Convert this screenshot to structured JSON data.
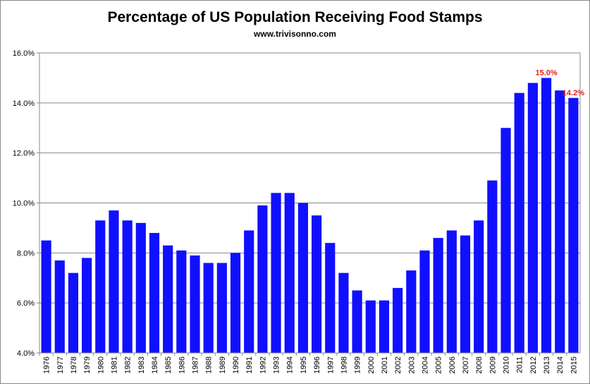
{
  "chart_data": {
    "type": "bar",
    "title": "Percentage of US Population Receiving Food Stamps",
    "subtitle": "www.trivisonno.com",
    "xlabel": "",
    "ylabel": "",
    "ylim": [
      4,
      16
    ],
    "yticks": [
      "4.0%",
      "6.0%",
      "8.0%",
      "10.0%",
      "12.0%",
      "14.0%",
      "16.0%"
    ],
    "grid": true,
    "bar_color": "#1010FF",
    "label_color": "#E02020",
    "categories": [
      "1976",
      "1977",
      "1978",
      "1979",
      "1980",
      "1981",
      "1982",
      "1983",
      "1984",
      "1985",
      "1986",
      "1987",
      "1988",
      "1989",
      "1990",
      "1991",
      "1992",
      "1993",
      "1994",
      "1995",
      "1996",
      "1997",
      "1998",
      "1999",
      "2000",
      "2001",
      "2002",
      "2003",
      "2004",
      "2005",
      "2006",
      "2007",
      "2008",
      "2009",
      "2010",
      "2011",
      "2012",
      "2013",
      "2014",
      "2015"
    ],
    "values": [
      8.5,
      7.7,
      7.2,
      7.8,
      9.3,
      9.7,
      9.3,
      9.2,
      8.8,
      8.3,
      8.1,
      7.9,
      7.6,
      7.6,
      8.0,
      8.9,
      9.9,
      10.4,
      10.4,
      10.0,
      9.5,
      8.4,
      7.2,
      6.5,
      6.1,
      6.1,
      6.6,
      7.3,
      8.1,
      8.6,
      8.9,
      8.7,
      9.3,
      10.9,
      13.0,
      14.4,
      14.8,
      15.0,
      14.5,
      14.2
    ],
    "data_labels": [
      {
        "category": "2013",
        "text": "15.0%"
      },
      {
        "category": "2015",
        "text": "14.2%"
      }
    ]
  }
}
